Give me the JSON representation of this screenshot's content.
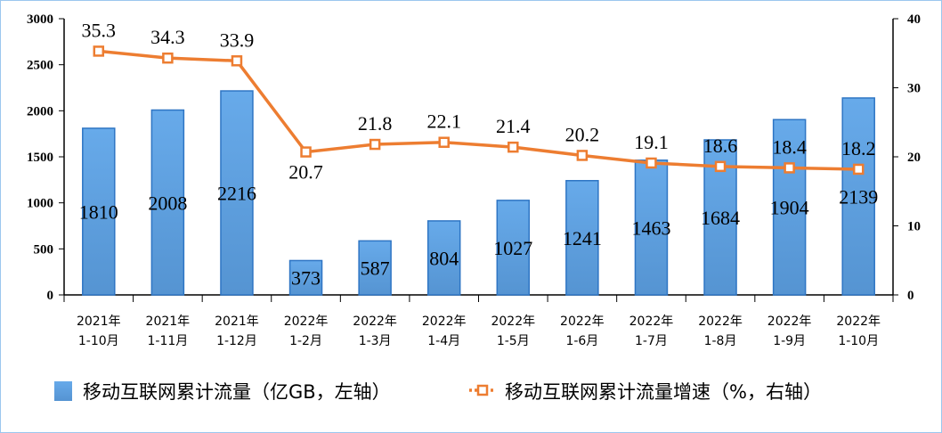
{
  "chart_data": {
    "type": "bar+line",
    "categories": [
      [
        "2021年",
        "1-10月"
      ],
      [
        "2021年",
        "1-11月"
      ],
      [
        "2021年",
        "1-12月"
      ],
      [
        "2022年",
        "1-2月"
      ],
      [
        "2022年",
        "1-3月"
      ],
      [
        "2022年",
        "1-4月"
      ],
      [
        "2022年",
        "1-5月"
      ],
      [
        "2022年",
        "1-6月"
      ],
      [
        "2022年",
        "1-7月"
      ],
      [
        "2022年",
        "1-8月"
      ],
      [
        "2022年",
        "1-9月"
      ],
      [
        "2022年",
        "1-10月"
      ]
    ],
    "series": [
      {
        "name": "移动互联网累计流量（亿GB，左轴）",
        "type": "bar",
        "axis": "left",
        "color": "#5b9bd5",
        "values": [
          1810,
          2008,
          2216,
          373,
          587,
          804,
          1027,
          1241,
          1463,
          1684,
          1904,
          2139
        ]
      },
      {
        "name": "移动互联网累计流量增速（%，右轴）",
        "type": "line",
        "axis": "right",
        "color": "#ed7d31",
        "values": [
          35.3,
          34.3,
          33.9,
          20.7,
          21.8,
          22.1,
          21.4,
          20.2,
          19.1,
          18.6,
          18.4,
          18.2
        ]
      }
    ],
    "left_axis": {
      "range": [
        0,
        3000
      ],
      "ticks": [
        0,
        500,
        1000,
        1500,
        2000,
        2500,
        3000
      ]
    },
    "right_axis": {
      "range": [
        0,
        40
      ],
      "ticks": [
        0,
        10,
        20,
        30,
        40
      ]
    },
    "grid": false,
    "legend": "bottom"
  }
}
